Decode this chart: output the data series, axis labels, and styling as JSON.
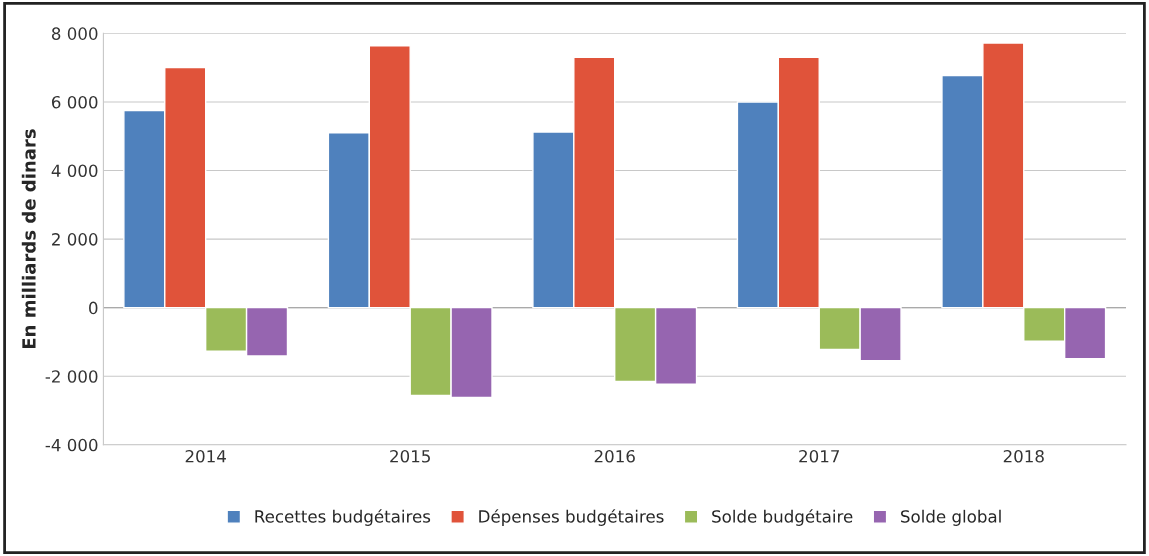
{
  "chart_data": {
    "type": "bar",
    "ylabel": "En milliards de dinars",
    "categories": [
      "2014",
      "2015",
      "2016",
      "2017",
      "2018"
    ],
    "series": [
      {
        "name": "Recettes budgétaires",
        "color": "#4f81bd",
        "values": [
          5750,
          5100,
          5120,
          6000,
          6770
        ]
      },
      {
        "name": "Dépenses budgétaires",
        "color": "#e0533a",
        "values": [
          7000,
          7640,
          7300,
          7300,
          7720
        ]
      },
      {
        "name": "Solde budgétaire",
        "color": "#9bbb59",
        "values": [
          -1270,
          -2560,
          -2150,
          -1220,
          -980
        ]
      },
      {
        "name": "Solde global",
        "color": "#9665b0",
        "values": [
          -1410,
          -2620,
          -2230,
          -1550,
          -1490
        ]
      }
    ],
    "ylim": [
      -4000,
      8000
    ],
    "yticks": [
      {
        "value": -4000,
        "label": "-4 000"
      },
      {
        "value": -2000,
        "label": "-2 000"
      },
      0,
      {
        "value": 2000,
        "label": "2 000"
      },
      {
        "value": 4000,
        "label": "4 000"
      },
      {
        "value": 6000,
        "label": "6 000"
      },
      {
        "value": 8000,
        "label": "8 000"
      }
    ],
    "grid": "y",
    "legend": "bottom"
  }
}
